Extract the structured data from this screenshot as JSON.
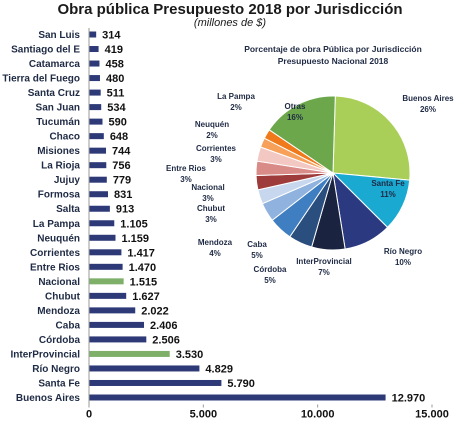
{
  "chart_data": [
    {
      "type": "bar",
      "orientation": "horizontal",
      "title": "Obra pública Presupuesto 2018 por Jurisdicción",
      "subtitle": "(millones de $)",
      "categories": [
        "San Luis",
        "Santiago del E",
        "Catamarca",
        "Tierra del Fuego",
        "Santa Cruz",
        "San Juan",
        "Tucumán",
        "Chaco",
        "Misiones",
        "La Rioja",
        "Jujuy",
        "Formosa",
        "Salta",
        "La Pampa",
        "Neuquén",
        "Corrientes",
        "Entre Rios",
        "Nacional",
        "Chubut",
        "Mendoza",
        "Caba",
        "Córdoba",
        "InterProvincial",
        "Río Negro",
        "Santa Fe",
        "Buenos Aires"
      ],
      "values": [
        314,
        419,
        458,
        480,
        511,
        534,
        590,
        648,
        744,
        756,
        779,
        831,
        913,
        1105,
        1159,
        1417,
        1470,
        1515,
        1627,
        2022,
        2406,
        2506,
        3530,
        4829,
        5790,
        12970
      ],
      "value_labels": [
        "314",
        "419",
        "458",
        "480",
        "511",
        "534",
        "590",
        "648",
        "744",
        "756",
        "779",
        "831",
        "913",
        "1.105",
        "1.159",
        "1.417",
        "1.470",
        "1.515",
        "1.627",
        "2.022",
        "2.406",
        "2.506",
        "3.530",
        "4.829",
        "5.790",
        "12.970"
      ],
      "highlighted": [
        "Nacional",
        "InterProvincial"
      ],
      "xlim": [
        0,
        15000
      ],
      "xticks": [
        0,
        5000,
        10000,
        15000
      ],
      "xtick_labels": [
        "0",
        "5.000",
        "10.000",
        "15.000"
      ],
      "colors": {
        "bar": "#2e3a78",
        "highlight": "#7fb069"
      }
    },
    {
      "type": "pie",
      "title": "Porcentaje de obra Pública por Jurisdicción",
      "subtitle": "Presupuesto Nacional 2018",
      "slices": [
        {
          "label": "Buenos Aires",
          "value": 26,
          "text": "26%",
          "color": "#a9cf58"
        },
        {
          "label": "Santa Fe",
          "value": 11,
          "text": "11%",
          "color": "#1aa9d1"
        },
        {
          "label": "Río Negro",
          "value": 10,
          "text": "10%",
          "color": "#2b3a80"
        },
        {
          "label": "InterProvincial",
          "value": 7,
          "text": "7%",
          "color": "#1a2440"
        },
        {
          "label": "Córdoba",
          "value": 5,
          "text": "5%",
          "color": "#2a4f7e"
        },
        {
          "label": "Caba",
          "value": 5,
          "text": "5%",
          "color": "#3f7ec1"
        },
        {
          "label": "Mendoza",
          "value": 4,
          "text": "4%",
          "color": "#8fb3de"
        },
        {
          "label": "Chubut",
          "value": 3,
          "text": "3%",
          "color": "#c7d7ee"
        },
        {
          "label": "Nacional",
          "value": 3,
          "text": "3%",
          "color": "#9e3b3b"
        },
        {
          "label": "Entre Rios",
          "value": 3,
          "text": "3%",
          "color": "#d98b88"
        },
        {
          "label": "Corrientes",
          "value": 3,
          "text": "3%",
          "color": "#f3c7c2"
        },
        {
          "label": "Neuquén",
          "value": 2,
          "text": "2%",
          "color": "#f6a05a"
        },
        {
          "label": "La Pampa",
          "value": 2,
          "text": "2%",
          "color": "#f07a1b"
        },
        {
          "label": "Otras",
          "value": 16,
          "text": "16%",
          "color": "#6ca84b"
        }
      ]
    }
  ]
}
